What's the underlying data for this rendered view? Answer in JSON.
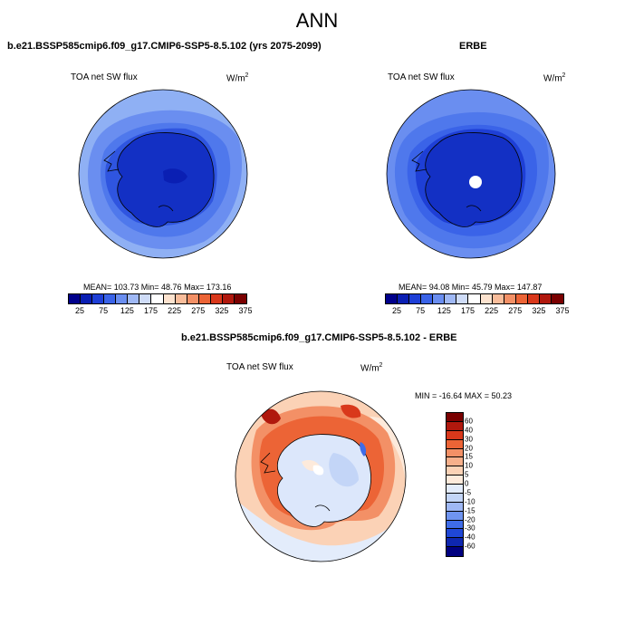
{
  "header": {
    "title": "ANN"
  },
  "panel_left": {
    "case_title": "b.e21.BSSP585cmip6.f09_g17.CMIP6-SSP5-8.5.102 (yrs 2075-2099)",
    "var_label": "TOA net SW flux",
    "units_base": "W/m",
    "units_sup": "2",
    "stats": "MEAN= 103.73  Min=  48.76  Max= 173.16"
  },
  "panel_right": {
    "case_title": "ERBE",
    "var_label": "TOA net SW flux",
    "units_base": "W/m",
    "units_sup": "2",
    "stats": "MEAN=  94.08  Min=  45.79  Max= 147.87"
  },
  "panel_diff": {
    "case_title": "b.e21.BSSP585cmip6.f09_g17.CMIP6-SSP5-8.5.102 - ERBE",
    "var_label": "TOA net SW flux",
    "units_base": "W/m",
    "units_sup": "2",
    "stats": "MIN = -16.64 MAX =  50.23"
  },
  "colorbar_abs": {
    "colors": [
      "#00008b",
      "#0a1fb3",
      "#1e3fd6",
      "#3a63e8",
      "#6a8ef0",
      "#9fb8f5",
      "#cfdcf8",
      "#ffffff",
      "#fde3cf",
      "#f9bd9b",
      "#f39066",
      "#ec6436",
      "#d9381b",
      "#b0180d",
      "#7a0000"
    ],
    "ticks": [
      "25",
      "75",
      "125",
      "175",
      "225",
      "275",
      "325",
      "375"
    ]
  },
  "colorbar_diff": {
    "colors": [
      "#7a0000",
      "#b0180d",
      "#d9381b",
      "#ec6436",
      "#f39066",
      "#f7b08b",
      "#fbd2b6",
      "#fdeadb",
      "#e3ecfb",
      "#c3d5f7",
      "#9fb8f5",
      "#6f94f0",
      "#3f6ce8",
      "#1f47d6",
      "#0e27b0",
      "#000080"
    ],
    "ticks": [
      "60",
      "40",
      "30",
      "20",
      "15",
      "10",
      "5",
      "0",
      "-5",
      "-10",
      "-15",
      "-20",
      "-30",
      "-40",
      "-60"
    ]
  }
}
